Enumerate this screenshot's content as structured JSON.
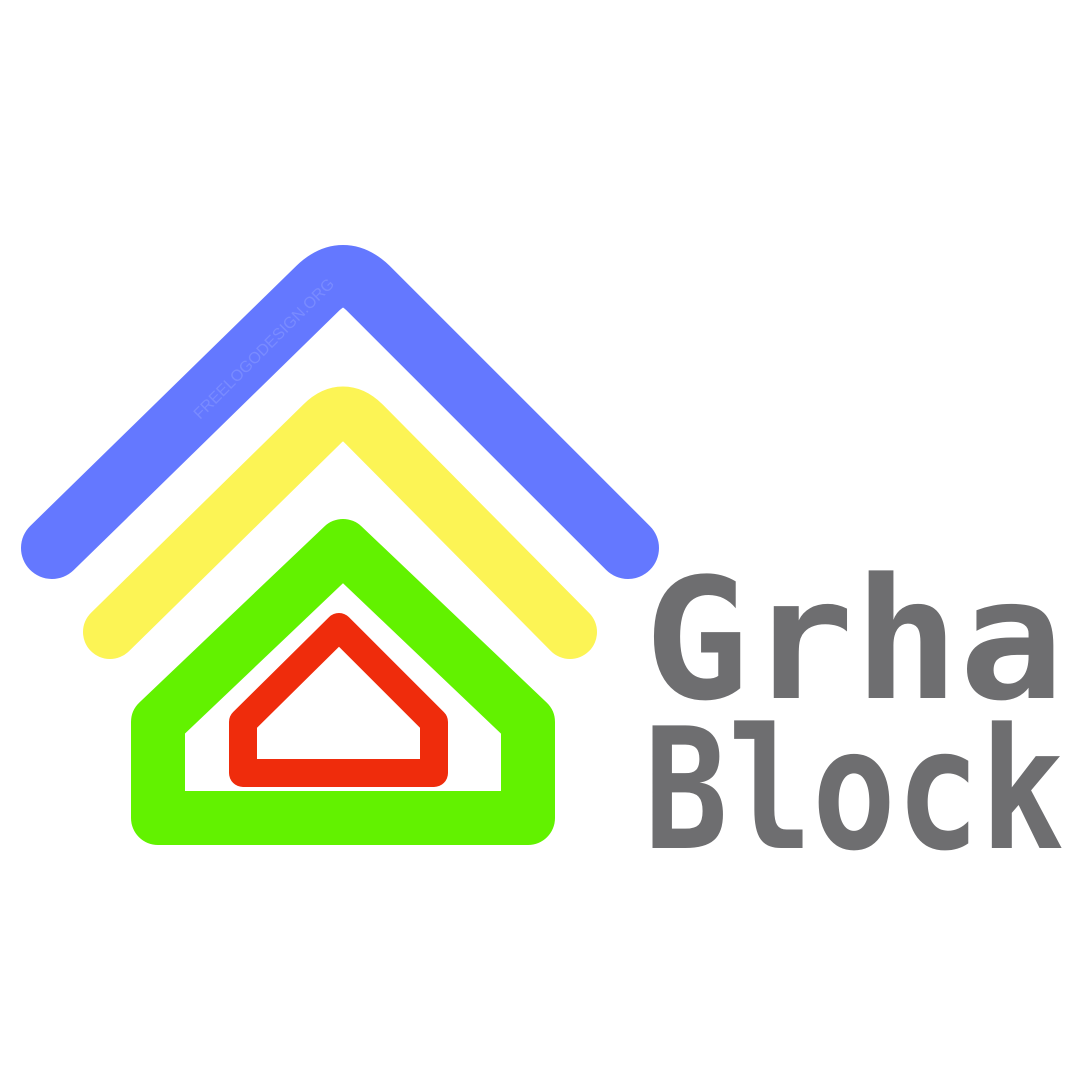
{
  "logo": {
    "word_line_1": "Grha",
    "word_line_2": "Block",
    "watermark": "FREELOGODESIGN.ORG",
    "colors": {
      "roof_outer": "#6478ff",
      "roof_middle": "#fcf455",
      "house_outline": "#62f200",
      "house_inner": "#ef2c0c",
      "wordmark": "#6e6e70",
      "background": "#ffffff"
    }
  }
}
